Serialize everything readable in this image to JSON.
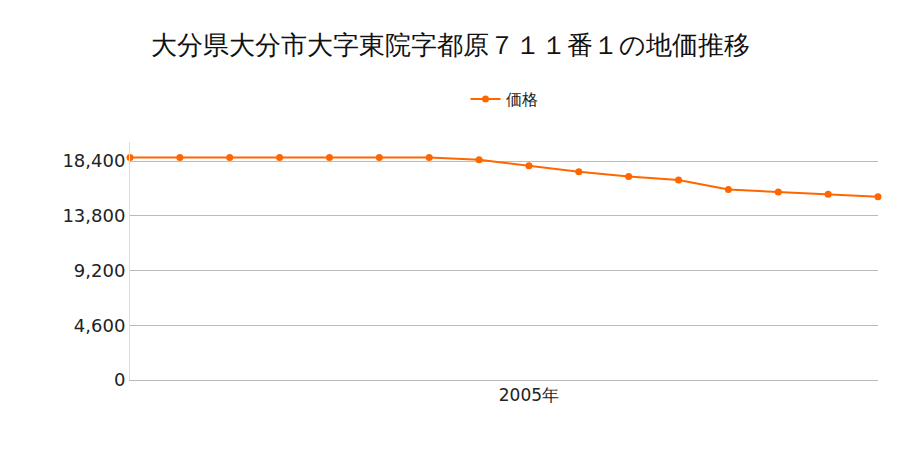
{
  "chart_data": {
    "type": "line",
    "title": "大分県大分市大字東院字都原７１１番１の地価推移",
    "categories": [
      null,
      null,
      null,
      null,
      null,
      null,
      null,
      null,
      "2005年",
      null,
      null,
      null,
      null,
      null,
      null,
      null
    ],
    "series": [
      {
        "name": "価格",
        "color": "#ff6600",
        "marker": "circle",
        "values": [
          18700,
          18700,
          18700,
          18700,
          18700,
          18700,
          18700,
          18500,
          18000,
          17500,
          17100,
          16800,
          16000,
          15800,
          15600,
          15400
        ]
      }
    ],
    "ylim": [
      0,
      20000
    ],
    "yticks": [
      0,
      {
        "value": 4600,
        "label": "4,600"
      },
      {
        "value": 9200,
        "label": "9,200"
      },
      {
        "value": 13800,
        "label": "13,800"
      },
      {
        "value": 18400,
        "label": "18,400"
      }
    ],
    "grid": true,
    "legend": "top"
  }
}
